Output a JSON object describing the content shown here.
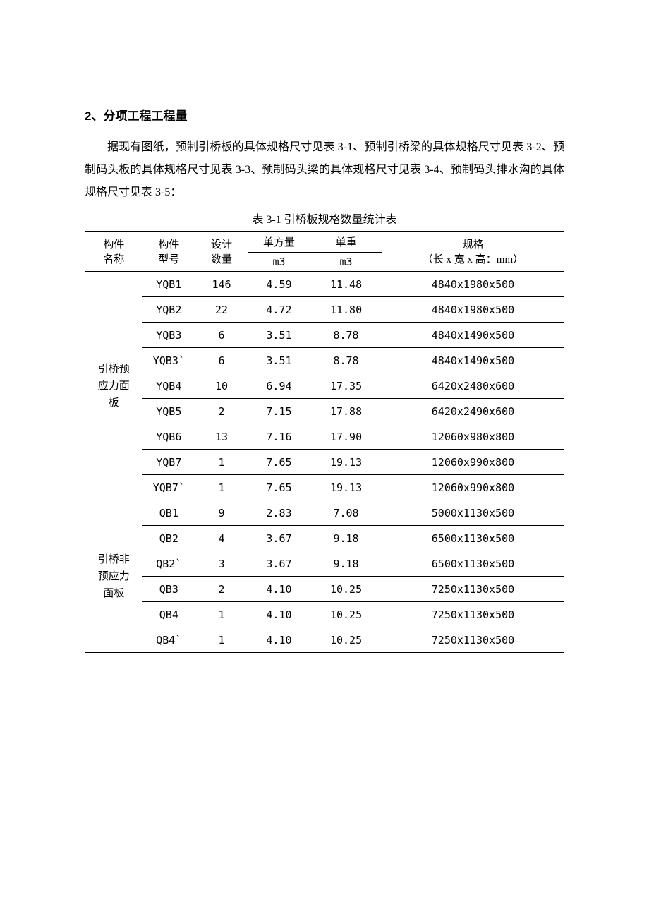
{
  "heading": "2、分项工程工程量",
  "paragraph": "据现有图纸，预制引桥板的具体规格尺寸见表 3-1、预制引桥梁的具体规格尺寸见表 3-2、预制码头板的具体规格尺寸见表 3-3、预制码头梁的具体规格尺寸见表 3-4、预制码头排水沟的具体规格尺寸见表 3-5：",
  "table": {
    "caption": "表 3-1 引桥板规格数量统计表",
    "headers": {
      "name_l1": "构件",
      "name_l2": "名称",
      "model_l1": "构件",
      "model_l2": "型号",
      "qty_l1": "设计",
      "qty_l2": "数量",
      "vol_l1": "单方量",
      "vol_l2": "m3",
      "weight_l1": "单重",
      "weight_l2": "m3",
      "spec_l1": "规格",
      "spec_l2": "（长 x 宽 x 高：mm）"
    },
    "groups": [
      {
        "name": "引桥预应力面板",
        "name_lines": [
          "引桥预",
          "应力面",
          "板"
        ],
        "rows": [
          {
            "model": "YQB1",
            "qty": "146",
            "vol": "4.59",
            "weight": "11.48",
            "spec": "4840x1980x500"
          },
          {
            "model": "YQB2",
            "qty": "22",
            "vol": "4.72",
            "weight": "11.80",
            "spec": "4840x1980x500"
          },
          {
            "model": "YQB3",
            "qty": "6",
            "vol": "3.51",
            "weight": "8.78",
            "spec": "4840x1490x500"
          },
          {
            "model": "YQB3`",
            "qty": "6",
            "vol": "3.51",
            "weight": "8.78",
            "spec": "4840x1490x500"
          },
          {
            "model": "YQB4",
            "qty": "10",
            "vol": "6.94",
            "weight": "17.35",
            "spec": "6420x2480x600"
          },
          {
            "model": "YQB5",
            "qty": "2",
            "vol": "7.15",
            "weight": "17.88",
            "spec": "6420x2490x600"
          },
          {
            "model": "YQB6",
            "qty": "13",
            "vol": "7.16",
            "weight": "17.90",
            "spec": "12060x980x800"
          },
          {
            "model": "YQB7",
            "qty": "1",
            "vol": "7.65",
            "weight": "19.13",
            "spec": "12060x990x800"
          },
          {
            "model": "YQB7`",
            "qty": "1",
            "vol": "7.65",
            "weight": "19.13",
            "spec": "12060x990x800"
          }
        ]
      },
      {
        "name": "引桥非预应力面板",
        "name_lines": [
          "引桥非",
          "预应力",
          "面板"
        ],
        "rows": [
          {
            "model": "QB1",
            "qty": "9",
            "vol": "2.83",
            "weight": "7.08",
            "spec": "5000x1130x500"
          },
          {
            "model": "QB2",
            "qty": "4",
            "vol": "3.67",
            "weight": "9.18",
            "spec": "6500x1130x500"
          },
          {
            "model": "QB2`",
            "qty": "3",
            "vol": "3.67",
            "weight": "9.18",
            "spec": "6500x1130x500"
          },
          {
            "model": "QB3",
            "qty": "2",
            "vol": "4.10",
            "weight": "10.25",
            "spec": "7250x1130x500"
          },
          {
            "model": "QB4",
            "qty": "1",
            "vol": "4.10",
            "weight": "10.25",
            "spec": "7250x1130x500"
          },
          {
            "model": "QB4`",
            "qty": "1",
            "vol": "4.10",
            "weight": "10.25",
            "spec": "7250x1130x500"
          }
        ]
      }
    ]
  },
  "colors": {
    "text": "#000000",
    "background": "#ffffff",
    "border": "#000000"
  }
}
